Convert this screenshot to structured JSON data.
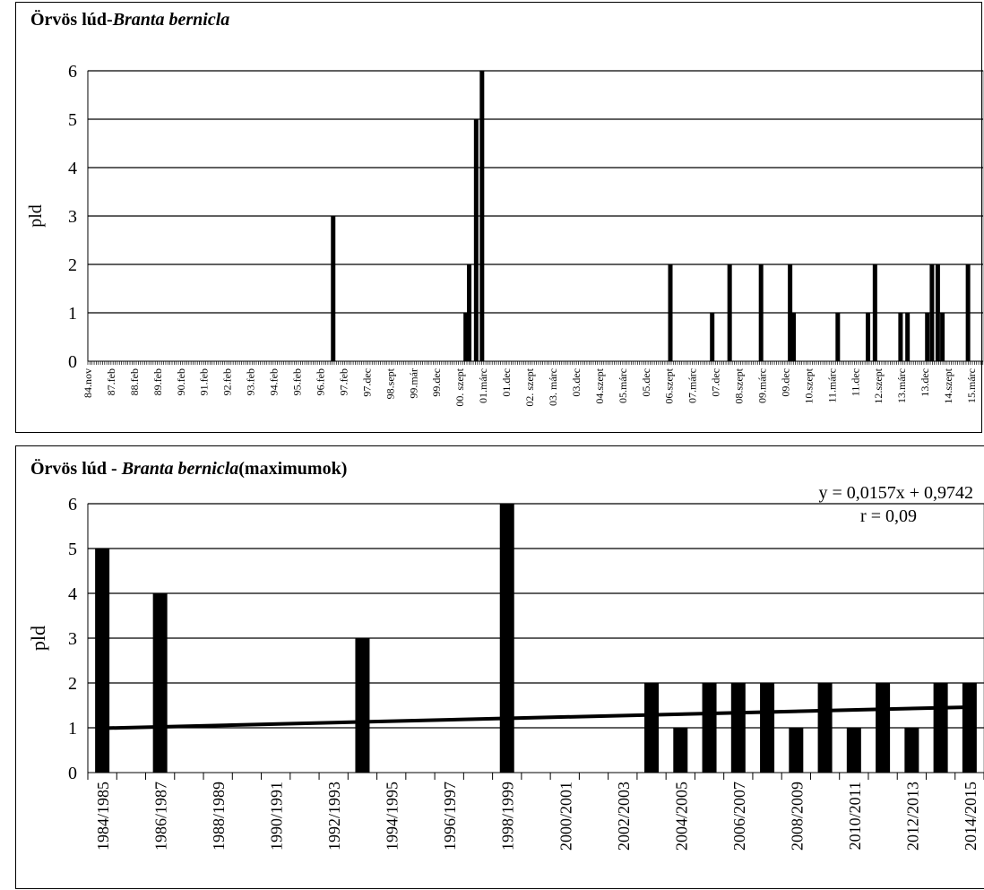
{
  "chart_data": [
    {
      "type": "bar",
      "title_plain": "Örvös lúd-",
      "title_italic": "Branta bernicla",
      "ylabel": "pld",
      "xlabel": "",
      "ylim": [
        0,
        6
      ],
      "yticks": [
        0,
        1,
        2,
        3,
        4,
        5,
        6
      ],
      "grid": true,
      "legend": "none",
      "tick_labels": [
        "84.nov",
        "87.feb",
        "88.feb",
        "89.feb",
        "90.feb",
        "91.feb",
        "92.feb",
        "93.feb",
        "94.feb",
        "95.feb",
        "96.feb",
        "97.feb",
        "97.dec",
        "98.sept",
        "99.már",
        "99.dec",
        "00. szept",
        "01.márc",
        "01.dec",
        "02. szept",
        "03. márc",
        "03.dec",
        "04.szept",
        "05.márc",
        "05.dec",
        "06.szept",
        "07.márc",
        "07.dec",
        "08.szept",
        "09.márc",
        "09.dec",
        "10.szept",
        "11.márc",
        "11.dec",
        "12.szept",
        "13.márc",
        "13.dec",
        "14.szept",
        "15.márc"
      ],
      "bars": [
        {
          "pos": 10.55,
          "value": 3
        },
        {
          "pos": 16.25,
          "value": 1
        },
        {
          "pos": 16.4,
          "value": 2
        },
        {
          "pos": 16.7,
          "value": 5
        },
        {
          "pos": 16.95,
          "value": 6
        },
        {
          "pos": 25.05,
          "value": 2
        },
        {
          "pos": 26.85,
          "value": 1
        },
        {
          "pos": 27.6,
          "value": 2
        },
        {
          "pos": 28.95,
          "value": 2
        },
        {
          "pos": 30.2,
          "value": 2
        },
        {
          "pos": 30.35,
          "value": 1
        },
        {
          "pos": 32.25,
          "value": 1
        },
        {
          "pos": 33.55,
          "value": 1
        },
        {
          "pos": 33.85,
          "value": 2
        },
        {
          "pos": 34.95,
          "value": 1
        },
        {
          "pos": 35.25,
          "value": 1
        },
        {
          "pos": 36.1,
          "value": 1
        },
        {
          "pos": 36.3,
          "value": 2
        },
        {
          "pos": 36.55,
          "value": 2
        },
        {
          "pos": 36.75,
          "value": 1
        },
        {
          "pos": 37.85,
          "value": 2
        }
      ]
    },
    {
      "type": "bar",
      "title_plain": "Örvös lúd - ",
      "title_italic": "Branta bernicla",
      "title_suffix": "(maximumok)",
      "ylabel": "pld",
      "xlabel": "",
      "ylim": [
        0,
        6
      ],
      "yticks": [
        0,
        1,
        2,
        3,
        4,
        5,
        6
      ],
      "grid": true,
      "legend": "none",
      "categories": [
        "1984/1985",
        "1985/1986",
        "1986/1987",
        "1987/1988",
        "1988/1989",
        "1989/1990",
        "1990/1991",
        "1991/1992",
        "1992/1993",
        "1993/1994",
        "1994/1995",
        "1995/1996",
        "1996/1997",
        "1997/1998",
        "1998/1999",
        "1999/2000",
        "2000/2001",
        "2001/2002",
        "2002/2003",
        "2003/2004",
        "2004/2005",
        "2005/2006",
        "2006/2007",
        "2007/2008",
        "2008/2009",
        "2009/2010",
        "2010/2011",
        "2011/2012",
        "2012/2013",
        "2013/2014",
        "2014/2015"
      ],
      "visible_tick_labels": [
        "1984/1985",
        "1986/1987",
        "1988/1989",
        "1990/1991",
        "1992/1993",
        "1994/1995",
        "1996/1997",
        "1998/1999",
        "2000/2001",
        "2002/2003",
        "2004/2005",
        "2006/2007",
        "2008/2009",
        "2010/2011",
        "2012/2013",
        "2014/2015"
      ],
      "values": [
        5,
        0,
        4,
        0,
        0,
        0,
        0,
        0,
        0,
        3,
        0,
        0,
        0,
        0,
        6,
        0,
        0,
        0,
        0,
        2,
        1,
        2,
        2,
        2,
        1,
        2,
        1,
        2,
        1,
        2,
        2
      ],
      "trendline": {
        "slope": 0.0157,
        "intercept": 0.9742
      },
      "annotations": [
        "y = 0,0157x   + 0,9742",
        "r = 0,09"
      ]
    }
  ]
}
